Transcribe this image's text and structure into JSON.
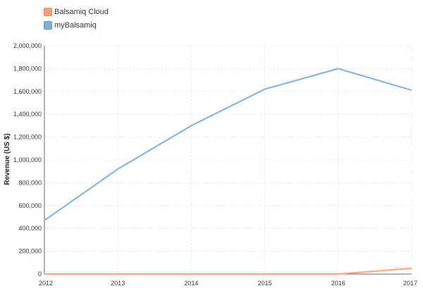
{
  "chart_data": {
    "type": "line",
    "x": [
      2012,
      2013,
      2014,
      2015,
      2016,
      2017
    ],
    "series": [
      {
        "name": "Balsamiq Cloud",
        "color": "#f0a27c",
        "values": [
          0,
          0,
          0,
          0,
          0,
          50000
        ]
      },
      {
        "name": "myBalsamiq",
        "color": "#7fb0d6",
        "values": [
          470000,
          920000,
          1300000,
          1620000,
          1800000,
          1610000
        ]
      }
    ],
    "xlabel": "",
    "ylabel": "Revenue (US $)",
    "ylim": [
      0,
      2000000
    ],
    "yticks": [
      0,
      200000,
      400000,
      600000,
      800000,
      1000000,
      1200000,
      1400000,
      1600000,
      1800000,
      2000000
    ],
    "ytick_labels": [
      "0",
      "200,000",
      "400,000",
      "600,000",
      "800,000",
      "1,000,000",
      "1,200,000",
      "1,400,000",
      "1,600,000",
      "1,800,000",
      "2,000,000"
    ],
    "xtick_labels": [
      "2012",
      "2013",
      "2014",
      "2015",
      "2016",
      "2017"
    ],
    "grid": true,
    "legend_position": "top-left"
  }
}
